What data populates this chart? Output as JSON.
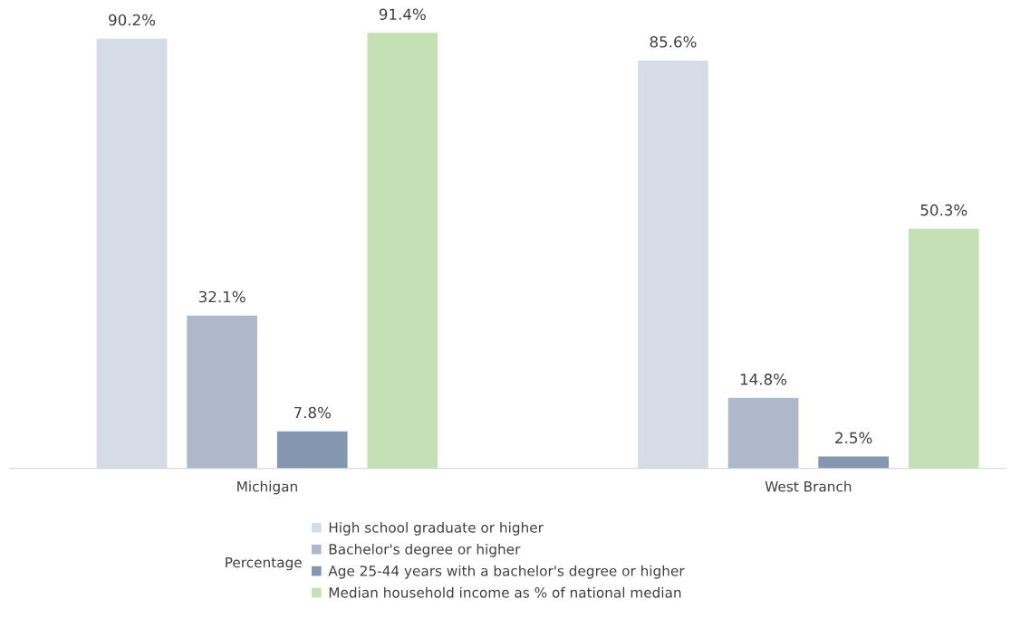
{
  "chart_data": {
    "type": "bar",
    "categories": [
      "Michigan",
      "West Branch"
    ],
    "legend_title": "Percentage",
    "series": [
      {
        "name": "High school graduate or higher",
        "color": "#d6dce5",
        "values": [
          90.2,
          85.6
        ],
        "value_labels": [
          "90.2%",
          "85.6%"
        ]
      },
      {
        "name": "Bachelor's degree or higher",
        "color": "#adb9ca",
        "values": [
          32.1,
          14.8
        ],
        "value_labels": [
          "32.1%",
          "14.8%"
        ]
      },
      {
        "name": "Age 25-44 years with a bachelor's degree or higher",
        "color": "#8497b0",
        "values": [
          7.8,
          2.5
        ],
        "value_labels": [
          "7.8%",
          "2.5%"
        ]
      },
      {
        "name": "Median household income as % of national median",
        "color": "#c5e0b4",
        "values": [
          91.4,
          50.3
        ],
        "value_labels": [
          "91.4%",
          "50.3%"
        ]
      }
    ],
    "legend": "bottom",
    "grid": false
  }
}
